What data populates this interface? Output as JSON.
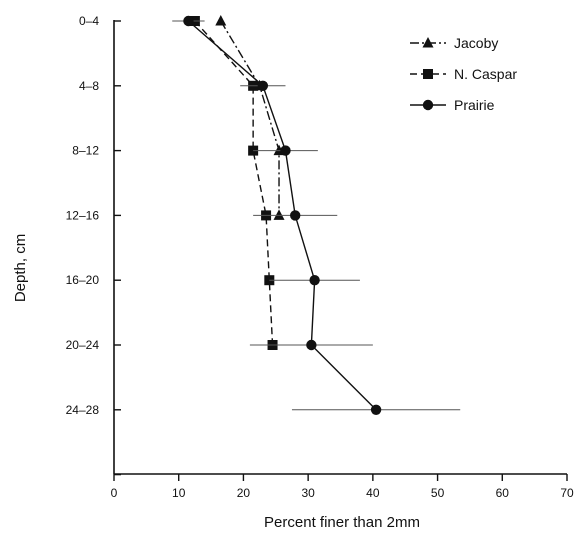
{
  "chart_data": {
    "type": "scatter",
    "title": "",
    "xlabel": "Percent finer than 2mm",
    "ylabel": "Depth, cm",
    "xlim": [
      0,
      70
    ],
    "x_ticks": [
      0,
      10,
      20,
      30,
      40,
      50,
      60,
      70
    ],
    "categories": [
      "0-4",
      "4-8",
      "8-12",
      "12-16",
      "16-20",
      "20-24",
      "24-28"
    ],
    "grid": false,
    "legend_position": "top-right",
    "series": [
      {
        "name": "Jacoby",
        "marker": "triangle",
        "line_style": "dash-dot",
        "values": [
          16.5,
          22.5,
          25.5,
          25.5,
          null,
          null,
          null
        ],
        "error": [
          null,
          null,
          null,
          null,
          null,
          null,
          null
        ]
      },
      {
        "name": "N. Caspar",
        "marker": "square",
        "line_style": "dashed",
        "values": [
          12.5,
          21.5,
          21.5,
          23.5,
          24,
          24.5,
          null
        ],
        "error": [
          null,
          null,
          null,
          null,
          null,
          null,
          null
        ]
      },
      {
        "name": "Prairie",
        "marker": "circle",
        "line_style": "solid",
        "values": [
          11.5,
          23,
          26.5,
          28,
          31,
          30.5,
          40.5
        ],
        "error": [
          2.5,
          3.5,
          5,
          6.5,
          7,
          9.5,
          13
        ]
      }
    ]
  },
  "colors": {
    "ink": "#111111",
    "background": "#ffffff"
  }
}
